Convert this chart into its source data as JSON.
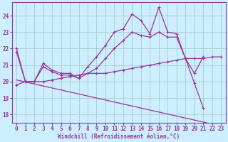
{
  "xlabel": "Windchill (Refroidissement éolien,°C)",
  "bg_color": "#cceeff",
  "line_color": "#993399",
  "grid_color": "#aacccc",
  "xlim": [
    -0.5,
    23.5
  ],
  "ylim": [
    17.5,
    24.8
  ],
  "yticks": [
    18,
    19,
    20,
    21,
    22,
    23,
    24
  ],
  "xticks": [
    0,
    1,
    2,
    3,
    4,
    5,
    6,
    7,
    8,
    9,
    10,
    11,
    12,
    13,
    14,
    15,
    16,
    17,
    18,
    19,
    20,
    21,
    22,
    23
  ],
  "lines": [
    {
      "x": [
        0,
        1,
        2,
        3,
        4,
        5,
        6,
        7,
        8,
        9,
        10,
        11,
        12,
        13,
        14,
        15,
        16,
        17,
        18,
        19,
        20,
        21
      ],
      "y": [
        21.8,
        20.0,
        20.0,
        21.1,
        20.7,
        20.5,
        20.5,
        20.2,
        20.9,
        21.5,
        22.2,
        23.0,
        23.2,
        24.1,
        23.7,
        22.9,
        24.5,
        23.0,
        22.9,
        21.4,
        19.9,
        18.4
      ]
    },
    {
      "x": [
        0,
        1,
        2,
        3,
        4,
        5,
        6,
        7,
        8,
        9,
        10,
        11,
        12,
        13,
        14,
        15,
        16,
        17,
        18,
        19,
        20,
        21,
        22,
        23
      ],
      "y": [
        19.8,
        20.0,
        20.0,
        20.0,
        20.1,
        20.2,
        20.3,
        20.4,
        20.5,
        20.5,
        20.5,
        20.6,
        20.7,
        20.8,
        20.9,
        21.0,
        21.1,
        21.2,
        21.3,
        21.4,
        21.4,
        21.4,
        21.5,
        21.5
      ]
    },
    {
      "x": [
        0,
        1,
        2,
        3,
        4,
        5,
        6,
        7,
        8,
        9,
        10,
        11,
        12,
        13,
        14,
        15,
        16,
        17,
        18,
        19,
        20,
        21
      ],
      "y": [
        22.0,
        20.0,
        20.0,
        20.9,
        20.6,
        20.4,
        20.4,
        20.2,
        20.5,
        20.8,
        21.4,
        22.0,
        22.5,
        23.0,
        22.8,
        22.7,
        23.0,
        22.7,
        22.7,
        21.4,
        20.5,
        21.5
      ]
    },
    {
      "x": [
        0,
        23
      ],
      "y": [
        20.1,
        17.3
      ]
    }
  ]
}
